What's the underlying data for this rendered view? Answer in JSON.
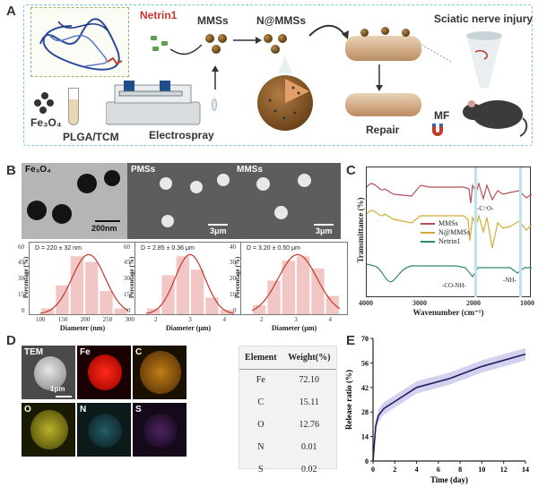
{
  "panel_a": {
    "letter": "A",
    "labels": {
      "netrin1": "Netrin1",
      "mmss": "MMSs",
      "n_mmss": "N@MMSs",
      "sciatic": "Sciatic nerve injury",
      "fe3o4": "Fe₃O₄",
      "plga": "PLGA/TCM",
      "electrospray": "Electrospray",
      "repair": "Repair",
      "mf": "MF"
    }
  },
  "panel_b": {
    "letter": "B",
    "images": [
      {
        "label": "Fe₃O₄",
        "scale": "200nm"
      },
      {
        "label": "PMSs",
        "scale": "3μm"
      },
      {
        "label": "MMSs",
        "scale": "3μm"
      }
    ],
    "histograms": [
      {
        "annotation": "D = 220 ± 32 nm",
        "xlabel": "Diameter (nm)",
        "ylabel": "Percentage (%)",
        "xticks": [
          "100",
          "150",
          "200",
          "250",
          "300"
        ],
        "yticks": [
          "0",
          "15",
          "30",
          "45",
          "60"
        ],
        "bars": [
          5,
          25,
          50,
          45,
          20,
          5
        ],
        "mean": 0.55,
        "sd": 0.19
      },
      {
        "annotation": "D = 2.85 ± 0.36 μm",
        "xlabel": "Diameter (μm)",
        "ylabel": "Percentage (%)",
        "xticks": [
          "2",
          "3",
          "4"
        ],
        "yticks": [
          "0",
          "15",
          "30",
          "45",
          "60"
        ],
        "bars": [
          5,
          35,
          52,
          40,
          15,
          4
        ],
        "mean": 0.5,
        "sd": 0.17
      },
      {
        "annotation": "D = 3.20 ± 0.50 μm",
        "xlabel": "Diameter (μm)",
        "ylabel": "Percentage (%)",
        "xticks": [
          "2",
          "3",
          "4"
        ],
        "yticks": [
          "0",
          "10",
          "20",
          "30",
          "40"
        ],
        "bars": [
          6,
          22,
          35,
          38,
          30,
          12
        ],
        "mean": 0.52,
        "sd": 0.22
      }
    ]
  },
  "panel_c": {
    "letter": "C",
    "ylabel": "Transmittance (%)",
    "xlabel": "Wavenumber (cm⁻¹)",
    "xticks": [
      "4000",
      "3000",
      "2000",
      "1000"
    ],
    "legend": [
      {
        "name": "MMSs",
        "color": "#b55058"
      },
      {
        "name": "N@MMSs",
        "color": "#d2aa36"
      },
      {
        "name": "Netrin1",
        "color": "#2f8a64"
      }
    ],
    "annotations": {
      "co": "-C=O-",
      "conh": "-CO-NH-",
      "nh": "-NH-"
    }
  },
  "panel_d": {
    "letter": "D",
    "maps": [
      {
        "label": "TEM",
        "scale": "1μm"
      },
      {
        "label": "Fe"
      },
      {
        "label": "C"
      },
      {
        "label": "O"
      },
      {
        "label": "N"
      },
      {
        "label": "S"
      }
    ],
    "table": {
      "headers": [
        "Element",
        "Weight(%)"
      ],
      "rows": [
        [
          "Fe",
          "72.10"
        ],
        [
          "C",
          "15.11"
        ],
        [
          "O",
          "12.76"
        ],
        [
          "N",
          "0.01"
        ],
        [
          "S",
          "0.02"
        ]
      ]
    }
  },
  "panel_e": {
    "letter": "E"
  },
  "chart_data": [
    {
      "type": "line",
      "title": "",
      "xlabel": "Time (day)",
      "ylabel": "Release ratio (%)",
      "xlim": [
        0,
        14
      ],
      "ylim": [
        0,
        70
      ],
      "xticks": [
        "0",
        "2",
        "4",
        "6",
        "8",
        "10",
        "12",
        "14"
      ],
      "yticks": [
        "0",
        "14",
        "28",
        "42",
        "56",
        "70"
      ],
      "series": [
        {
          "x": [
            0,
            0.25,
            0.5,
            1,
            2,
            4,
            7,
            10,
            14
          ],
          "y": [
            0,
            20,
            26,
            30,
            34,
            42,
            47,
            54,
            61
          ],
          "band": 3.5
        }
      ]
    }
  ]
}
